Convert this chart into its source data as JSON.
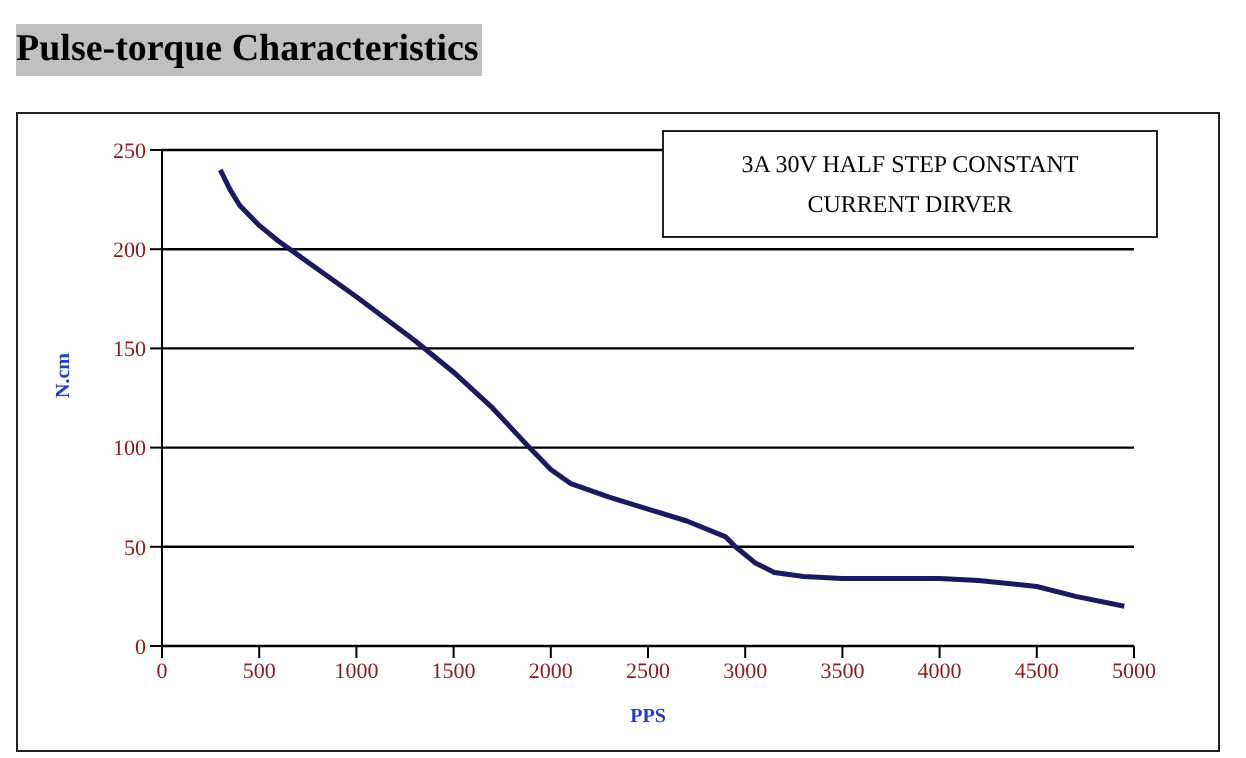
{
  "chart_data": {
    "type": "line",
    "title": "Pulse-torque Characteristics",
    "xlabel": "PPS",
    "ylabel": "N.cm",
    "annotations": [
      "3A 30V HALF STEP CONSTANT CURRENT DIRVER"
    ],
    "x": [
      300,
      350,
      400,
      500,
      600,
      700,
      1000,
      1300,
      1500,
      1700,
      1900,
      2000,
      2100,
      2300,
      2500,
      2700,
      2900,
      2950,
      3050,
      3150,
      3300,
      3500,
      4000,
      4200,
      4500,
      4700,
      4950
    ],
    "series": [
      {
        "color": "#1a1a5e",
        "values": [
          240,
          230,
          222,
          212,
          204,
          197,
          176,
          154,
          138,
          120,
          99,
          89,
          82,
          75,
          69,
          63,
          55,
          50,
          42,
          37,
          35,
          34,
          34,
          33,
          30,
          25,
          20
        ]
      }
    ],
    "xlim": [
      0,
      5000
    ],
    "xticks": [
      0,
      500,
      1000,
      1500,
      2000,
      2500,
      3000,
      3500,
      4000,
      4500,
      5000
    ],
    "ylim": [
      0,
      250
    ],
    "yticks": [
      0,
      50,
      100,
      150,
      200,
      250
    ],
    "grid": "y",
    "legend": false,
    "marker": "none",
    "line_style": "solid"
  }
}
